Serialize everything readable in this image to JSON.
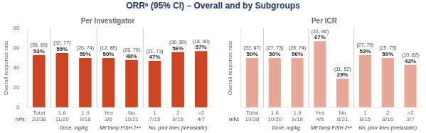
{
  "chart_data": [
    {
      "type": "bar",
      "title": "ORRᵃ (95% CI) – Overall and by Subgroups",
      "subtitle": "Per Investigator",
      "ylabel": "Overall response rate",
      "categories": [
        "Total",
        "1.6",
        "1.9",
        "Yes",
        "No",
        "1",
        "2",
        ">2"
      ],
      "values": [
        53,
        55,
        50,
        50,
        48,
        47,
        56,
        57
      ],
      "value_labels": [
        "53%",
        "55%",
        "50%",
        "50%",
        "48%",
        "47%",
        "56%",
        "57%"
      ],
      "ci": [
        "(36, 69)",
        "(32, 77)",
        "(26, 74)",
        "(12, 88)",
        "(26, 70)",
        "(21, 73)",
        "(30, 80)",
        "(18, 90)"
      ],
      "n_labels": [
        "20/38",
        "11/20",
        "9/18",
        "3/6",
        "10/21",
        "7/15",
        "9/16",
        "4/7"
      ],
      "n_label": "n/N:",
      "groups": [
        {
          "label": "Dose, mg/kg",
          "first": "1.6",
          "last": "1.9"
        },
        {
          "label": "METamp FISH 2+ᵇ",
          "first": "Yes",
          "last": "No"
        },
        {
          "label": "No. prior lines (metastatic)",
          "first": "1",
          "last": ">2"
        }
      ],
      "color": "#CC4422",
      "ylim": [
        0,
        80
      ],
      "yticks": [
        0,
        20,
        40,
        60,
        80
      ],
      "grid": false,
      "data_labels": true
    },
    {
      "type": "bar",
      "subtitle": "Per ICR",
      "ylabel": "Overall response rate",
      "categories": [
        "Total",
        "1.6",
        "1.9",
        "Yes",
        "No",
        "1",
        "2",
        ">2"
      ],
      "values": [
        50,
        50,
        50,
        67,
        29,
        53,
        50,
        43
      ],
      "value_labels": [
        "50%",
        "50%",
        "50%",
        "67%",
        "29%",
        "53%",
        "50%",
        "43%"
      ],
      "ci": [
        "(33, 67)",
        "(27, 73)",
        "(26, 74)",
        "(22, 96)",
        "(11, 52)",
        "(27, 79)",
        "(25, 75)",
        "(10, 82)"
      ],
      "n_labels": [
        "19/38",
        "10/20",
        "9/18",
        "4/6",
        "6/21",
        "8/15",
        "8/16",
        "3/7"
      ],
      "n_label": "n/N:",
      "groups": [
        {
          "label": "Dose, mg/kg",
          "first": "1.6",
          "last": "1.9"
        },
        {
          "label": "METamp FISH 2+ᵇ",
          "first": "Yes",
          "last": "No"
        },
        {
          "label": "No. prior lines (metastatic)",
          "first": "1",
          "last": ">2"
        }
      ],
      "color": "#E8A898",
      "ylim": [
        0,
        80
      ],
      "yticks": [
        0,
        20,
        40,
        60,
        80
      ],
      "grid": false,
      "data_labels": true,
      "tick_labels": "x"
    }
  ]
}
